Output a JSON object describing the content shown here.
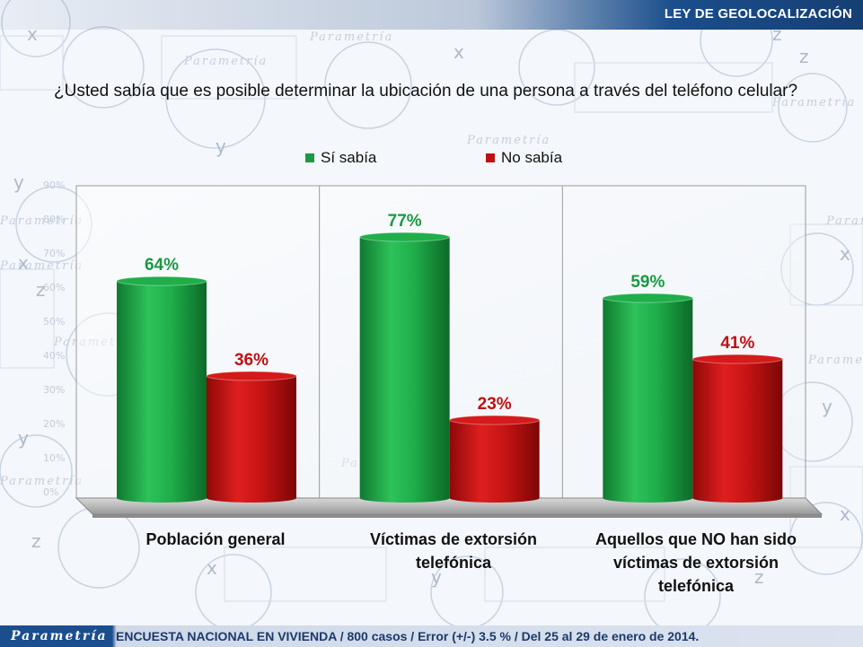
{
  "header": {
    "title": "LEY DE GEOLOCALIZACIÓN"
  },
  "question": "¿Usted sabía que es posible determinar la ubicación de una persona a través del teléfono celular?",
  "legend": [
    {
      "label": "Sí sabía",
      "color": "#1a9a42"
    },
    {
      "label": "No sabía",
      "color": "#c01010"
    }
  ],
  "chart_data": {
    "type": "bar",
    "title": "",
    "xlabel": "",
    "ylabel": "",
    "ylim": [
      0,
      90
    ],
    "categories": [
      "Población general",
      "Víctimas de extorsión telefónica",
      "Aquellos que NO han sido víctimas de extorsión telefónica"
    ],
    "category_lines": [
      [
        "Población general"
      ],
      [
        "Víctimas de extorsión",
        "telefónica"
      ],
      [
        "Aquellos que NO han sido",
        "víctimas de extorsión",
        "telefónica"
      ]
    ],
    "series": [
      {
        "name": "Sí sabía",
        "values": [
          64,
          77,
          59
        ],
        "labels": [
          "64%",
          "77%",
          "59%"
        ],
        "color": "#1a9a42"
      },
      {
        "name": "No sabía",
        "values": [
          36,
          23,
          41
        ],
        "labels": [
          "36%",
          "23%",
          "41%"
        ],
        "color": "#c01010"
      }
    ],
    "label_colors": [
      "#1a9a42",
      "#c01010"
    ]
  },
  "footer": {
    "logo": "Parametría",
    "text": "ENCUESTA NACIONAL EN VIVIENDA / 800 casos / Error (+/-) 3.5 % / Del 25 al 29 de enero de 2014."
  },
  "background_marks": {
    "brand": "Parametría",
    "glyphs": [
      "x",
      "y",
      "z"
    ],
    "ticks": [
      "90%",
      "80%",
      "70%",
      "60%",
      "50%",
      "40%",
      "30%",
      "20%",
      "10%",
      "0%"
    ]
  }
}
